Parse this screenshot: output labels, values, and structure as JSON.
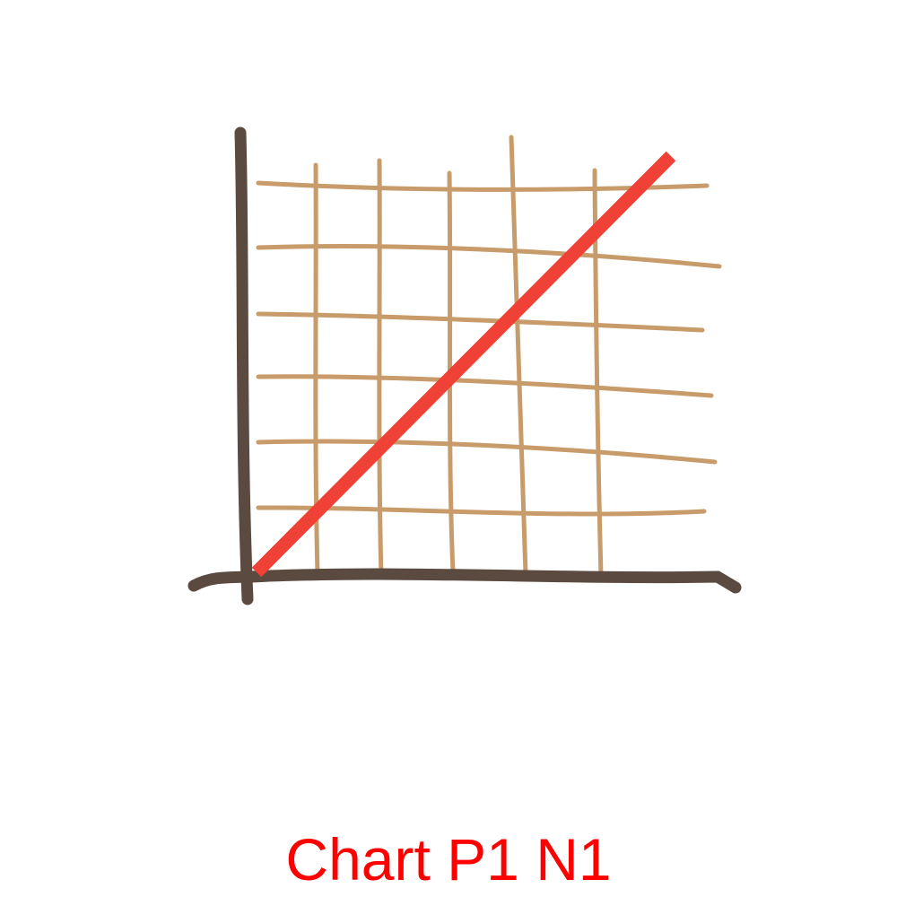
{
  "illustration": {
    "icon": "hand-drawn-line-chart-icon",
    "grid_color": "#c89b6b",
    "axis_color": "#5a4a40",
    "line_color": "#ef4136"
  },
  "caption": {
    "text": "Chart P1 N1",
    "color": "#ff0000"
  }
}
